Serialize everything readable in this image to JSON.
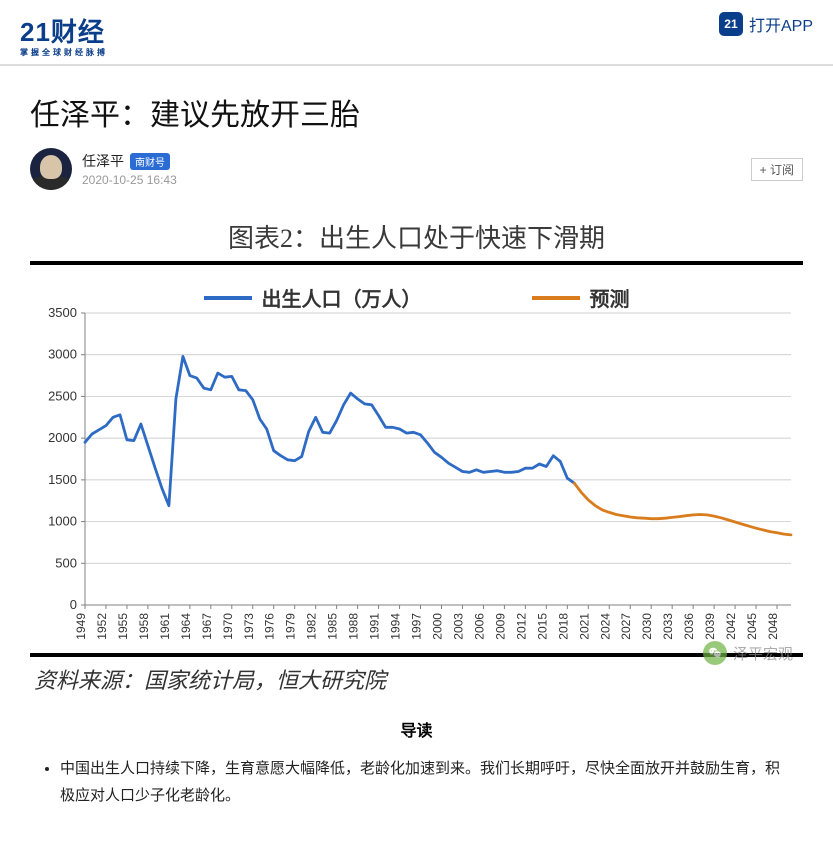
{
  "header": {
    "logo_main": "21财经",
    "logo_sub": "掌握全球财经脉搏",
    "app_icon_text": "21",
    "open_app": "打开APP"
  },
  "article": {
    "title": "任泽平：建议先放开三胎",
    "author": "任泽平",
    "badge": "南财号",
    "date": "2020-10-25 16:43",
    "subscribe": "+ 订阅"
  },
  "chart": {
    "type": "line",
    "title": "图表2：出生人口处于快速下滑期",
    "legend_series": "出生人口（万人）",
    "legend_forecast": "预测",
    "series_color": "#2d6bc4",
    "forecast_color": "#d97c1d",
    "background_color": "#ffffff",
    "grid_color": "#bfbfbf",
    "axis_color": "#808080",
    "title_fontsize": 26,
    "legend_fontsize": 20,
    "line_width": 2.8,
    "ylim": [
      0,
      3500
    ],
    "ytick_step": 500,
    "yticks": [
      0,
      500,
      1000,
      1500,
      2000,
      2500,
      3000,
      3500
    ],
    "x_years": [
      1949,
      1950,
      1951,
      1952,
      1953,
      1954,
      1955,
      1956,
      1957,
      1958,
      1959,
      1960,
      1961,
      1962,
      1963,
      1964,
      1965,
      1966,
      1967,
      1968,
      1969,
      1970,
      1971,
      1972,
      1973,
      1974,
      1975,
      1976,
      1977,
      1978,
      1979,
      1980,
      1981,
      1982,
      1983,
      1984,
      1985,
      1986,
      1987,
      1988,
      1989,
      1990,
      1991,
      1992,
      1993,
      1994,
      1995,
      1996,
      1997,
      1998,
      1999,
      2000,
      2001,
      2002,
      2003,
      2004,
      2005,
      2006,
      2007,
      2008,
      2009,
      2010,
      2011,
      2012,
      2013,
      2014,
      2015,
      2016,
      2017,
      2018,
      2019,
      2020,
      2021,
      2022,
      2023,
      2024,
      2025,
      2026,
      2027,
      2028,
      2029,
      2030,
      2031,
      2032,
      2033,
      2034,
      2035,
      2036,
      2037,
      2038,
      2039,
      2040,
      2041,
      2042,
      2043,
      2044,
      2045,
      2046,
      2047,
      2048,
      2049,
      2050
    ],
    "xticks": [
      1949,
      1952,
      1955,
      1958,
      1961,
      1964,
      1967,
      1970,
      1973,
      1976,
      1979,
      1982,
      1985,
      1988,
      1991,
      1994,
      1997,
      2000,
      2003,
      2006,
      2009,
      2012,
      2015,
      2018,
      2021,
      2024,
      2027,
      2030,
      2033,
      2036,
      2039,
      2042,
      2045,
      2048
    ],
    "historical": [
      [
        1949,
        1950
      ],
      [
        1950,
        2050
      ],
      [
        1951,
        2100
      ],
      [
        1952,
        2150
      ],
      [
        1953,
        2250
      ],
      [
        1954,
        2280
      ],
      [
        1955,
        1980
      ],
      [
        1956,
        1970
      ],
      [
        1957,
        2170
      ],
      [
        1958,
        1910
      ],
      [
        1959,
        1650
      ],
      [
        1960,
        1400
      ],
      [
        1961,
        1190
      ],
      [
        1962,
        2470
      ],
      [
        1963,
        2980
      ],
      [
        1964,
        2750
      ],
      [
        1965,
        2720
      ],
      [
        1966,
        2600
      ],
      [
        1967,
        2580
      ],
      [
        1968,
        2780
      ],
      [
        1969,
        2730
      ],
      [
        1970,
        2740
      ],
      [
        1971,
        2580
      ],
      [
        1972,
        2570
      ],
      [
        1973,
        2460
      ],
      [
        1974,
        2230
      ],
      [
        1975,
        2110
      ],
      [
        1976,
        1850
      ],
      [
        1977,
        1790
      ],
      [
        1978,
        1740
      ],
      [
        1979,
        1730
      ],
      [
        1980,
        1780
      ],
      [
        1981,
        2080
      ],
      [
        1982,
        2250
      ],
      [
        1983,
        2070
      ],
      [
        1984,
        2060
      ],
      [
        1985,
        2210
      ],
      [
        1986,
        2400
      ],
      [
        1987,
        2540
      ],
      [
        1988,
        2470
      ],
      [
        1989,
        2410
      ],
      [
        1990,
        2400
      ],
      [
        1991,
        2270
      ],
      [
        1992,
        2130
      ],
      [
        1993,
        2130
      ],
      [
        1994,
        2110
      ],
      [
        1995,
        2060
      ],
      [
        1996,
        2070
      ],
      [
        1997,
        2040
      ],
      [
        1998,
        1940
      ],
      [
        1999,
        1830
      ],
      [
        2000,
        1770
      ],
      [
        2001,
        1700
      ],
      [
        2002,
        1650
      ],
      [
        2003,
        1600
      ],
      [
        2004,
        1590
      ],
      [
        2005,
        1620
      ],
      [
        2006,
        1590
      ],
      [
        2007,
        1600
      ],
      [
        2008,
        1610
      ],
      [
        2009,
        1590
      ],
      [
        2010,
        1590
      ],
      [
        2011,
        1600
      ],
      [
        2012,
        1640
      ],
      [
        2013,
        1640
      ],
      [
        2014,
        1690
      ],
      [
        2015,
        1660
      ],
      [
        2016,
        1790
      ],
      [
        2017,
        1720
      ],
      [
        2018,
        1520
      ],
      [
        2019,
        1460
      ]
    ],
    "forecast": [
      [
        2019,
        1460
      ],
      [
        2020,
        1350
      ],
      [
        2021,
        1260
      ],
      [
        2022,
        1190
      ],
      [
        2023,
        1140
      ],
      [
        2024,
        1110
      ],
      [
        2025,
        1085
      ],
      [
        2026,
        1070
      ],
      [
        2027,
        1055
      ],
      [
        2028,
        1045
      ],
      [
        2029,
        1040
      ],
      [
        2030,
        1035
      ],
      [
        2031,
        1035
      ],
      [
        2032,
        1040
      ],
      [
        2033,
        1050
      ],
      [
        2034,
        1060
      ],
      [
        2035,
        1070
      ],
      [
        2036,
        1080
      ],
      [
        2037,
        1085
      ],
      [
        2038,
        1080
      ],
      [
        2039,
        1065
      ],
      [
        2040,
        1045
      ],
      [
        2041,
        1020
      ],
      [
        2042,
        995
      ],
      [
        2043,
        970
      ],
      [
        2044,
        945
      ],
      [
        2045,
        920
      ],
      [
        2046,
        900
      ],
      [
        2047,
        880
      ],
      [
        2048,
        865
      ],
      [
        2049,
        850
      ],
      [
        2050,
        840
      ]
    ],
    "source": "资料来源：国家统计局，恒大研究院",
    "watermark": "泽平宏观"
  },
  "content": {
    "lead_heading": "导读",
    "bullet1": "中国出生人口持续下降，生育意愿大幅降低，老龄化加速到来。我们长期呼吁，尽快全面放开并鼓励生育，积极应对人口少子化老龄化。"
  }
}
